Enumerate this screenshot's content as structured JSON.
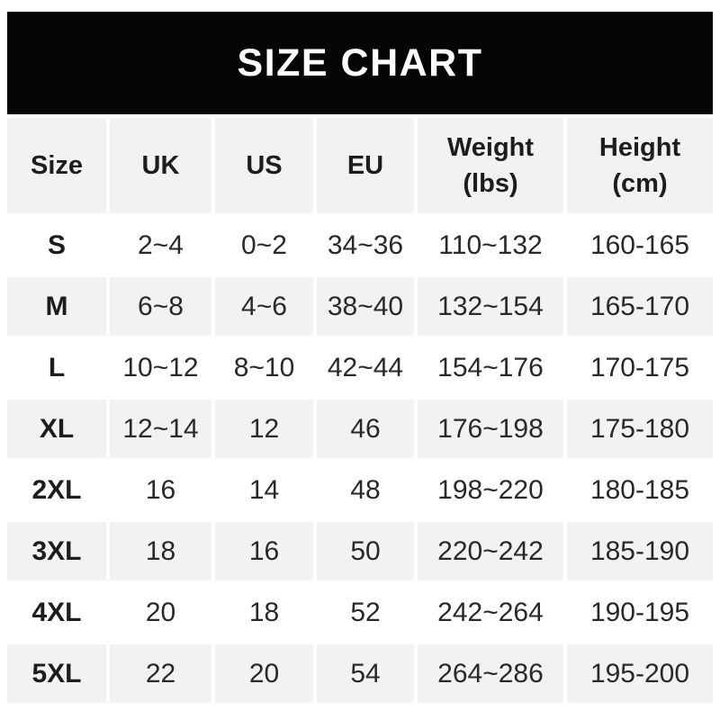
{
  "banner": {
    "title": "SIZE CHART",
    "bg_color": "#050505",
    "text_color": "#ffffff"
  },
  "colors": {
    "row_alt_bg": "#f2f2f2",
    "row_base_bg": "#ffffff",
    "header_text": "#1d1d1f",
    "data_text": "#29292b"
  },
  "table": {
    "headers": [
      {
        "label": "Size"
      },
      {
        "label": "UK"
      },
      {
        "label": "US"
      },
      {
        "label": "EU"
      },
      {
        "label": "Weight",
        "sub": "(lbs)"
      },
      {
        "label": "Height",
        "sub": "(cm)"
      }
    ],
    "rows": [
      {
        "size": "S",
        "uk": "2~4",
        "us": "0~2",
        "eu": "34~36",
        "weight": "110~132",
        "height": "160-165"
      },
      {
        "size": "M",
        "uk": "6~8",
        "us": "4~6",
        "eu": "38~40",
        "weight": "132~154",
        "height": "165-170"
      },
      {
        "size": "L",
        "uk": "10~12",
        "us": "8~10",
        "eu": "42~44",
        "weight": "154~176",
        "height": "170-175"
      },
      {
        "size": "XL",
        "uk": "12~14",
        "us": "12",
        "eu": "46",
        "weight": "176~198",
        "height": "175-180"
      },
      {
        "size": "2XL",
        "uk": "16",
        "us": "14",
        "eu": "48",
        "weight": "198~220",
        "height": "180-185"
      },
      {
        "size": "3XL",
        "uk": "18",
        "us": "16",
        "eu": "50",
        "weight": "220~242",
        "height": "185-190"
      },
      {
        "size": "4XL",
        "uk": "20",
        "us": "18",
        "eu": "52",
        "weight": "242~264",
        "height": "190-195"
      },
      {
        "size": "5XL",
        "uk": "22",
        "us": "20",
        "eu": "54",
        "weight": "264~286",
        "height": "195-200"
      }
    ]
  },
  "chart_data": {
    "type": "table",
    "title": "SIZE CHART",
    "columns": [
      "Size",
      "UK",
      "US",
      "EU",
      "Weight (lbs)",
      "Height (cm)"
    ],
    "rows": [
      [
        "S",
        "2~4",
        "0~2",
        "34~36",
        "110~132",
        "160-165"
      ],
      [
        "M",
        "6~8",
        "4~6",
        "38~40",
        "132~154",
        "165-170"
      ],
      [
        "L",
        "10~12",
        "8~10",
        "42~44",
        "154~176",
        "170-175"
      ],
      [
        "XL",
        "12~14",
        "12",
        "46",
        "176~198",
        "175-180"
      ],
      [
        "2XL",
        "16",
        "14",
        "48",
        "198~220",
        "180-185"
      ],
      [
        "3XL",
        "18",
        "16",
        "50",
        "220~242",
        "185-190"
      ],
      [
        "4XL",
        "20",
        "18",
        "52",
        "242~264",
        "190-195"
      ],
      [
        "5XL",
        "22",
        "20",
        "54",
        "264~286",
        "195-200"
      ]
    ],
    "layout": {
      "header_band": "black banner top",
      "alternating_row_shading": [
        "white",
        "#f2f2f2"
      ],
      "first_data_row_bg": "white"
    }
  }
}
